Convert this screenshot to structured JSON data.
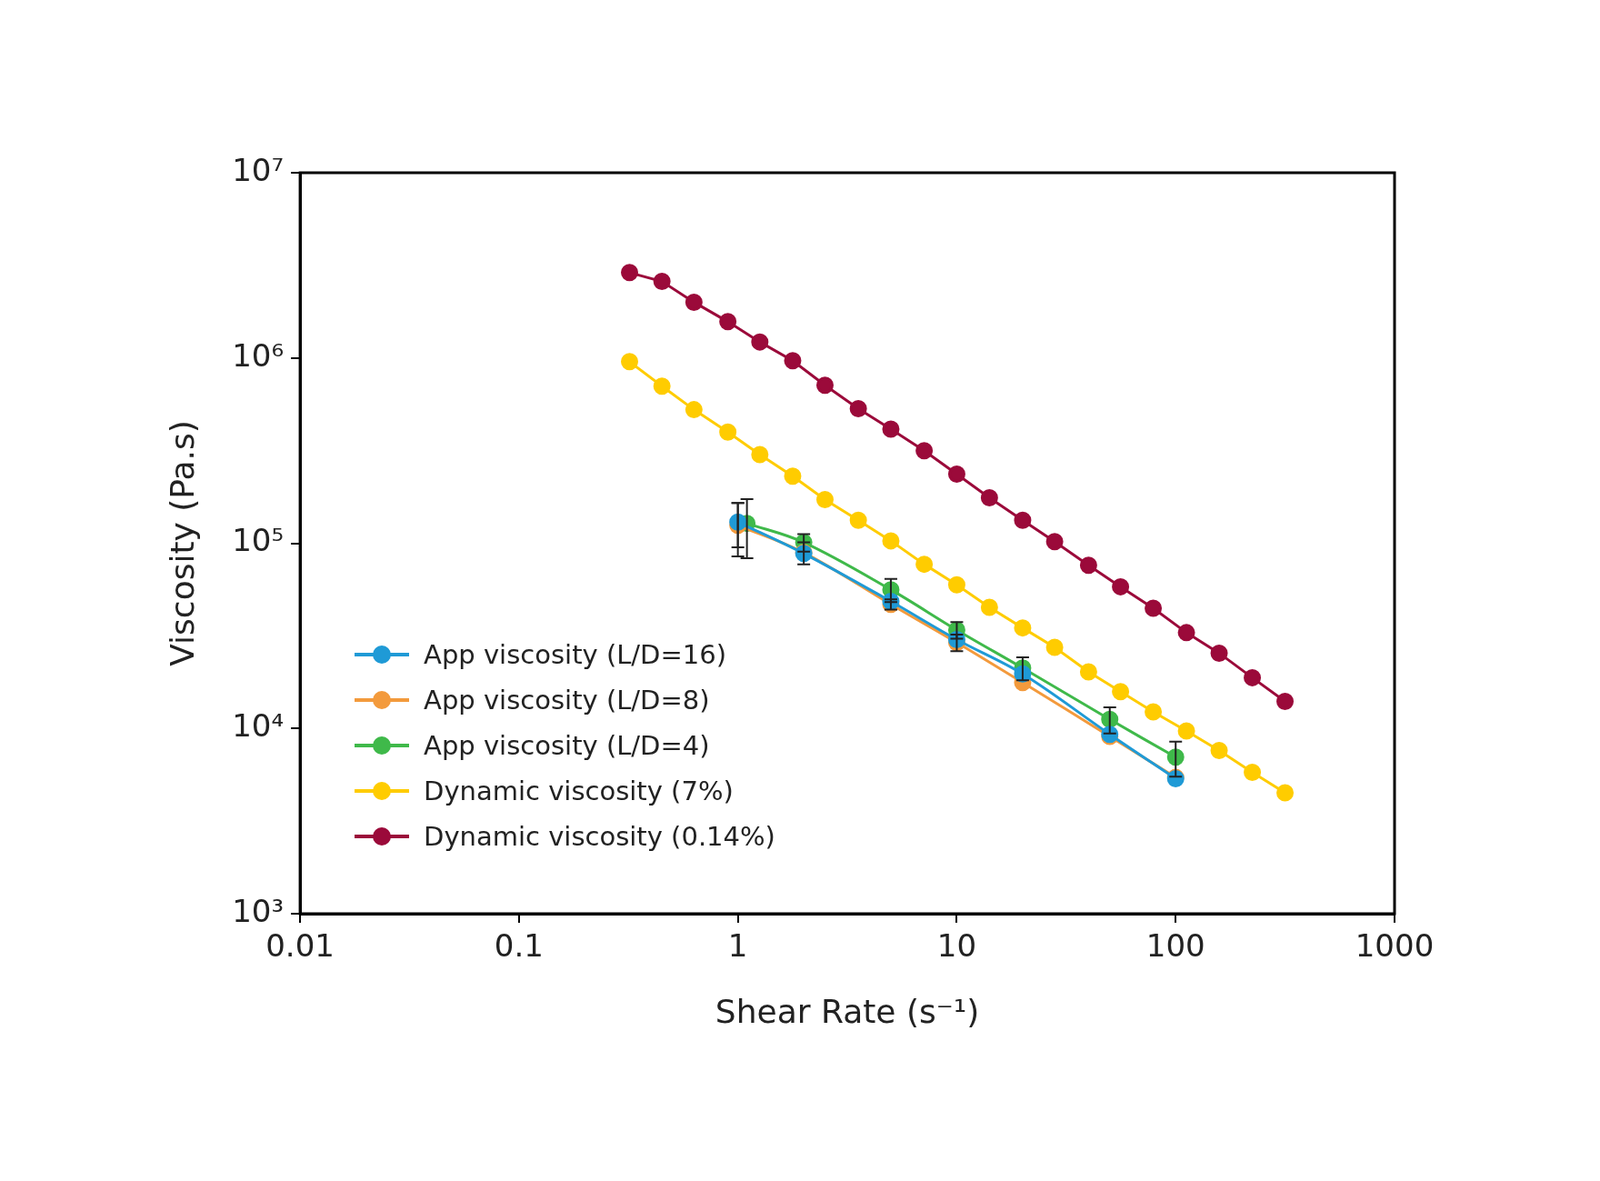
{
  "chart_data": {
    "type": "line",
    "x_label": "Shear Rate (s⁻¹)",
    "y_label": "Viscosity (Pa.s)",
    "log": true,
    "grid": false,
    "legend": "lower left",
    "xlim": [
      0.01,
      1000
    ],
    "xticks": [
      0.01,
      0.1,
      1,
      10,
      100,
      1000
    ],
    "ylim": [
      1000,
      10000000
    ],
    "yticks": [
      {
        "value": 1000,
        "label": "10³"
      },
      {
        "value": 10000,
        "label": "10⁴"
      },
      {
        "value": 100000,
        "label": "10⁵"
      },
      {
        "value": 1000000,
        "label": "10⁶"
      },
      {
        "value": 10000000,
        "label": "10⁷"
      }
    ],
    "series": [
      {
        "name": "App viscosity (L/D=16)",
        "color": "#1f9ad6",
        "marker": "circle",
        "line_style": "smooth",
        "x": [
          1,
          2,
          5,
          10,
          20,
          50,
          100
        ],
        "values": [
          130000,
          88000,
          48500,
          30200,
          19700,
          9300,
          5360
        ],
        "errors": [
          35000,
          null,
          null,
          null,
          null,
          null,
          null
        ]
      },
      {
        "name": "App viscosity (L/D=8)",
        "color": "#f39a3c",
        "marker": "circle",
        "line_style": "smooth",
        "x": [
          1,
          2,
          5,
          10,
          20,
          50,
          100
        ],
        "values": [
          125000,
          89000,
          46800,
          29100,
          17700,
          9050,
          5440
        ],
        "errors": [
          40000,
          12000,
          3000,
          3000,
          null,
          null,
          null
        ]
      },
      {
        "name": "App viscosity (L/D=4)",
        "color": "#3fb94a",
        "marker": "circle",
        "line_style": "smooth",
        "x": [
          1.1,
          2,
          5,
          10,
          20,
          50,
          100
        ],
        "values": [
          128000,
          101000,
          56100,
          34000,
          21200,
          11200,
          7000
        ],
        "errors": [
          45000,
          11000,
          8000,
          3500,
          3000,
          1800,
          1500
        ]
      },
      {
        "name": "Dynamic viscosity (7%)",
        "color": "#ffcc00",
        "marker": "circle",
        "line_style": "solid",
        "x": [
          0.32,
          0.45,
          0.63,
          0.9,
          1.26,
          1.78,
          2.5,
          3.55,
          5,
          7.1,
          10,
          14.1,
          20,
          28,
          40,
          56,
          79,
          112,
          158,
          224,
          316
        ],
        "values": [
          955000,
          705000,
          526000,
          398000,
          301000,
          230000,
          172000,
          133000,
          103000,
          77000,
          59600,
          45100,
          34900,
          27400,
          20200,
          15800,
          12300,
          9700,
          7600,
          5800,
          4500
        ]
      },
      {
        "name": "Dynamic viscosity (0.14%)",
        "color": "#9b0a3a",
        "marker": "circle",
        "line_style": "solid",
        "x": [
          0.32,
          0.45,
          0.63,
          0.9,
          1.26,
          1.78,
          2.5,
          3.55,
          5,
          7.1,
          10,
          14.1,
          20,
          28,
          40,
          56,
          79,
          112,
          158,
          224,
          316
        ],
        "values": [
          2890000,
          2590000,
          2000000,
          1570000,
          1220000,
          967000,
          713000,
          533000,
          413000,
          316000,
          236000,
          176000,
          133000,
          102000,
          76000,
          58200,
          44600,
          32900,
          25500,
          18800,
          14000
        ]
      }
    ]
  }
}
